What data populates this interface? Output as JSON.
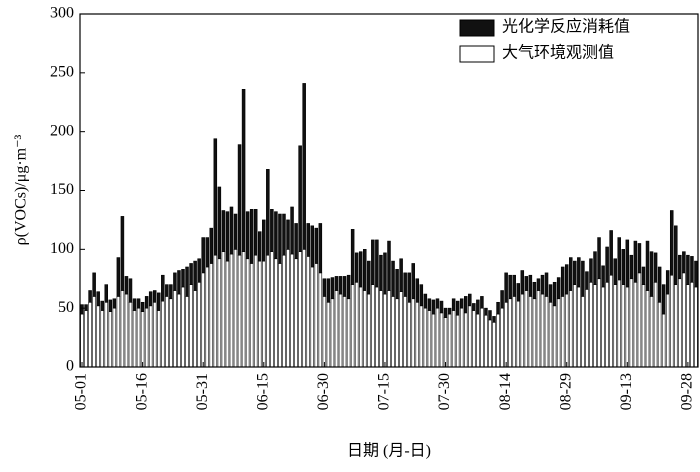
{
  "chart_data": {
    "type": "stacked_bar",
    "x_label": "日期 (月-日)",
    "y_label": "ρ(VOCs)/μg·m⁻³",
    "categories": [
      "05-01",
      null,
      null,
      null,
      null,
      null,
      null,
      null,
      null,
      null,
      null,
      null,
      null,
      null,
      null,
      "05-16",
      null,
      null,
      null,
      null,
      null,
      null,
      null,
      null,
      null,
      null,
      null,
      null,
      null,
      null,
      "05-31",
      null,
      null,
      null,
      null,
      null,
      null,
      null,
      null,
      null,
      null,
      null,
      null,
      null,
      null,
      "06-15",
      null,
      null,
      null,
      null,
      null,
      null,
      null,
      null,
      null,
      null,
      null,
      null,
      null,
      null,
      "06-30",
      null,
      null,
      null,
      null,
      null,
      null,
      null,
      null,
      null,
      null,
      null,
      null,
      null,
      null,
      "07-15",
      null,
      null,
      null,
      null,
      null,
      null,
      null,
      null,
      null,
      null,
      null,
      null,
      null,
      null,
      "07-30",
      null,
      null,
      null,
      null,
      null,
      null,
      null,
      null,
      null,
      null,
      null,
      null,
      null,
      null,
      "08-14",
      null,
      null,
      null,
      null,
      null,
      null,
      null,
      null,
      null,
      null,
      null,
      null,
      null,
      null,
      "08-29",
      null,
      null,
      null,
      null,
      null,
      null,
      null,
      null,
      null,
      null,
      null,
      null,
      null,
      null,
      "09-13",
      null,
      null,
      null,
      null,
      null,
      null,
      null,
      null,
      null,
      null,
      null,
      null,
      null,
      null,
      "09-28",
      null,
      null
    ],
    "series": [
      {
        "name": "大气环境观测值",
        "color": "#ffffff",
        "values": [
          45,
          48,
          55,
          60,
          52,
          48,
          55,
          47,
          50,
          60,
          65,
          62,
          55,
          48,
          50,
          47,
          50,
          52,
          55,
          48,
          56,
          60,
          58,
          65,
          62,
          68,
          60,
          70,
          65,
          72,
          80,
          85,
          88,
          95,
          92,
          98,
          90,
          96,
          100,
          95,
          98,
          92,
          88,
          95,
          90,
          90,
          95,
          98,
          92,
          88,
          95,
          100,
          96,
          92,
          98,
          100,
          94,
          85,
          88,
          80,
          60,
          55,
          58,
          65,
          62,
          60,
          58,
          70,
          72,
          68,
          65,
          62,
          70,
          68,
          65,
          62,
          65,
          60,
          58,
          64,
          60,
          55,
          58,
          55,
          52,
          50,
          48,
          45,
          50,
          46,
          42,
          45,
          48,
          44,
          50,
          46,
          52,
          48,
          45,
          50,
          44,
          40,
          38,
          45,
          50,
          55,
          58,
          60,
          56,
          62,
          65,
          60,
          58,
          65,
          62,
          60,
          55,
          52,
          58,
          60,
          62,
          65,
          70,
          68,
          60,
          66,
          72,
          70,
          75,
          68,
          72,
          78,
          70,
          74,
          70,
          68,
          75,
          72,
          80,
          70,
          65,
          60,
          72,
          55,
          45,
          62,
          78,
          70,
          75,
          80,
          70,
          72,
          68
        ]
      },
      {
        "name": "光化学反应消耗值",
        "color": "#111111",
        "values": [
          8,
          5,
          10,
          20,
          12,
          8,
          15,
          10,
          8,
          33,
          63,
          15,
          20,
          10,
          8,
          8,
          10,
          12,
          10,
          15,
          22,
          10,
          12,
          15,
          20,
          15,
          25,
          18,
          25,
          20,
          30,
          25,
          30,
          99,
          61,
          35,
          42,
          40,
          30,
          94,
          138,
          40,
          46,
          39,
          25,
          35,
          73,
          36,
          40,
          42,
          35,
          25,
          40,
          30,
          90,
          141,
          28,
          35,
          30,
          42,
          15,
          20,
          18,
          12,
          15,
          17,
          20,
          47,
          25,
          30,
          35,
          28,
          38,
          40,
          30,
          35,
          42,
          30,
          25,
          28,
          20,
          25,
          30,
          20,
          18,
          12,
          10,
          12,
          8,
          10,
          8,
          5,
          10,
          12,
          8,
          14,
          10,
          6,
          12,
          10,
          6,
          8,
          5,
          10,
          15,
          25,
          20,
          18,
          15,
          20,
          12,
          18,
          14,
          10,
          16,
          20,
          15,
          20,
          18,
          25,
          25,
          28,
          20,
          25,
          30,
          15,
          20,
          28,
          35,
          18,
          30,
          38,
          22,
          36,
          30,
          40,
          20,
          35,
          25,
          15,
          42,
          38,
          25,
          30,
          25,
          20,
          55,
          50,
          20,
          18,
          25,
          22,
          22
        ]
      }
    ],
    "ylim": [
      0,
      300
    ],
    "yticks": [
      0,
      50,
      100,
      150,
      200,
      250,
      300
    ],
    "legend": "upper right"
  }
}
